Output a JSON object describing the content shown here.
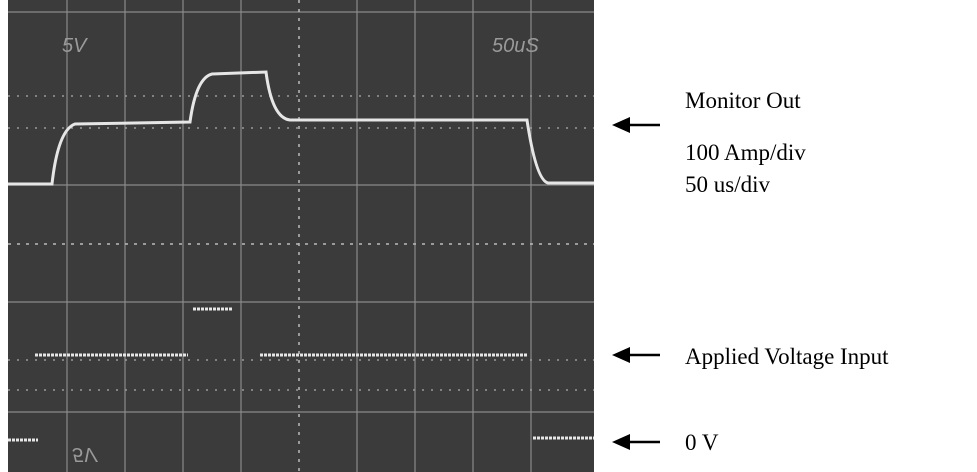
{
  "screen": {
    "top_left": "5V",
    "top_right": "50uS",
    "bottom_left": "5V"
  },
  "annotations": {
    "monitor": [
      "Monitor Out",
      "100 Amp/div",
      "50 us/div"
    ],
    "applied": "Applied Voltage Input",
    "zero": "0 V"
  }
}
